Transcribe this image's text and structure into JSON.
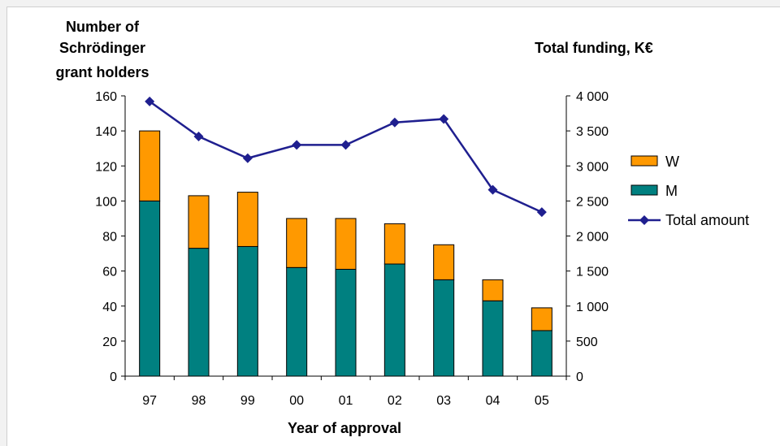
{
  "chart_data": {
    "type": "bar",
    "stacked": true,
    "xlabel": "Year of approval",
    "ylabel_left": [
      "Number of",
      "Schrödinger",
      "grant holders"
    ],
    "ylabel_right": "Total funding, K€",
    "categories": [
      "97",
      "98",
      "99",
      "00",
      "01",
      "02",
      "03",
      "04",
      "05"
    ],
    "y_left": {
      "min": 0,
      "max": 160,
      "step": 20,
      "tick_labels": [
        "0",
        "20",
        "40",
        "60",
        "80",
        "100",
        "120",
        "140",
        "160"
      ]
    },
    "y_right": {
      "min": 0,
      "max": 4000,
      "step": 500,
      "tick_labels": [
        "0",
        "500",
        "1 000",
        "1 500",
        "2 000",
        "2 500",
        "3 000",
        "3 500",
        "4 000"
      ]
    },
    "grid": false,
    "legend_position": "right",
    "series": [
      {
        "name": "M",
        "type": "bar",
        "axis": "left",
        "color": "#008080",
        "values": [
          100,
          73,
          74,
          62,
          61,
          64,
          55,
          43,
          26
        ]
      },
      {
        "name": "W",
        "type": "bar",
        "axis": "left",
        "color": "#ff9900",
        "values": [
          40,
          30,
          31,
          28,
          29,
          23,
          20,
          12,
          13
        ]
      },
      {
        "name": "Total amount",
        "type": "line",
        "axis": "right",
        "color": "#1f1f8f",
        "values": [
          3920,
          3420,
          3110,
          3300,
          3300,
          3620,
          3670,
          2660,
          2340
        ]
      }
    ],
    "legend": [
      {
        "label": "W",
        "kind": "box",
        "color": "#ff9900"
      },
      {
        "label": "M",
        "kind": "box",
        "color": "#008080"
      },
      {
        "label": "Total amount",
        "kind": "line",
        "color": "#1f1f8f"
      }
    ]
  }
}
